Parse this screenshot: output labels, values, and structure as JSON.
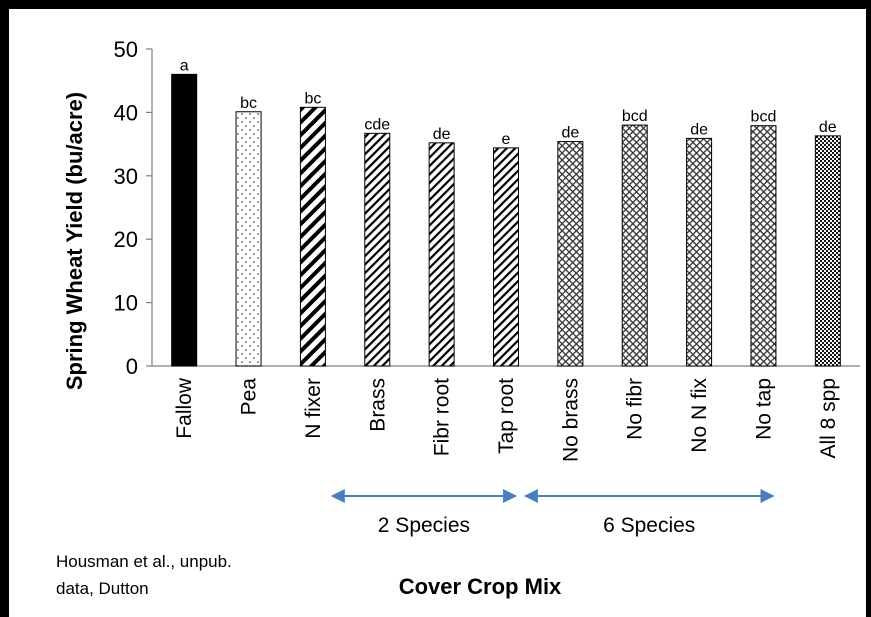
{
  "chart_data": {
    "type": "bar",
    "title": "",
    "xlabel": "Cover Crop Mix",
    "ylabel": "Spring Wheat Yield (bu/acre)",
    "ylim": [
      0,
      50
    ],
    "yticks": [
      0,
      10,
      20,
      30,
      40,
      50
    ],
    "grid": false,
    "categories": [
      "Fallow",
      "Pea",
      "N fixer",
      "Brass",
      "Fibr root",
      "Tap root",
      "No brass",
      "No fibr",
      "No N fix",
      "No tap",
      "All 8 spp"
    ],
    "values": [
      46.0,
      40.1,
      40.8,
      36.7,
      35.2,
      34.4,
      35.4,
      38.0,
      35.9,
      37.9,
      36.3
    ],
    "letters": [
      "a",
      "bc",
      "bc",
      "cde",
      "de",
      "e",
      "de",
      "bcd",
      "de",
      "bcd",
      "de"
    ],
    "bar_patterns": [
      "solid-black",
      "sparse-dots",
      "wide-diagonal",
      "narrow-diagonal",
      "narrow-diagonal",
      "narrow-diagonal",
      "crosshatch",
      "crosshatch",
      "crosshatch",
      "crosshatch",
      "dense-dots"
    ],
    "groups": [
      {
        "label": "2 Species",
        "from": "Brass",
        "to": "Tap root"
      },
      {
        "label": "6 Species",
        "from": "No brass",
        "to": "No tap"
      }
    ],
    "annotation": "Housman et al., unpub. data, Dutton",
    "colors": {
      "bar_stroke": "#000000",
      "fallow_fill": "#000000",
      "arrow": "#4A7EBB"
    }
  },
  "labels": {
    "ylabel": "Spring Wheat Yield (bu/acre)",
    "xlabel": "Cover Crop Mix",
    "credit_line1": "Housman et al., unpub.",
    "credit_line2": "data, Dutton",
    "group1": "2 Species",
    "group2": "6 Species"
  }
}
